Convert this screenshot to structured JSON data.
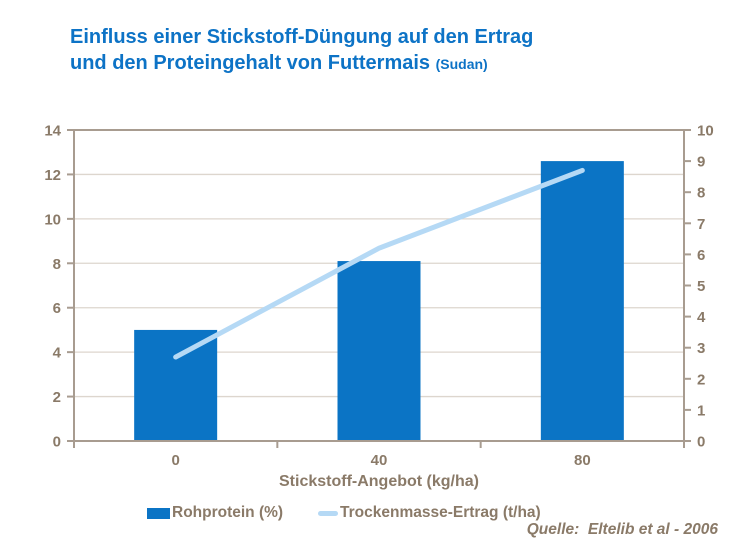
{
  "title": {
    "line1": "Einfluss einer Stickstoff-Düngung auf den Ertrag",
    "line2": "und den Proteingehalt von Futtermais",
    "suffix": "(Sudan)"
  },
  "source": "Quelle:  Eltelib et al - 2006",
  "colors": {
    "title_blue": "#0d73c6",
    "bar_blue": "#0b74c5",
    "line_lightblue": "#b5d9f5",
    "axis_text_brown": "#8a7a68",
    "axis_line": "#a89c90",
    "gridline": "#ddd6ce",
    "background": "#ffffff"
  },
  "legend": [
    {
      "label": "Rohprotein (%)",
      "marker": "bar-swatch"
    },
    {
      "label": "Trockenmasse-Ertrag (t/ha)",
      "marker": "line-swatch"
    }
  ],
  "chart_data": {
    "type": "bar",
    "subtype": "bar-and-line-dual-axis",
    "title": "Einfluss einer Stickstoff-Düngung auf den Ertrag und den Proteingehalt von Futtermais (Sudan)",
    "categories": [
      "0",
      "40",
      "80"
    ],
    "series": [
      {
        "name": "Rohprotein (%)",
        "type": "bar",
        "axis": "left",
        "values": [
          5.0,
          8.1,
          12.6
        ]
      },
      {
        "name": "Trockenmasse-Ertrag (t/ha)",
        "type": "line",
        "axis": "right",
        "values": [
          2.7,
          6.2,
          8.7
        ]
      }
    ],
    "xlabel": "Stickstoff-Angebot (kg/ha)",
    "ylabel_left": "",
    "ylabel_right": "",
    "left_axis": {
      "min": 0,
      "max": 14,
      "ticks": [
        0,
        2,
        4,
        6,
        8,
        10,
        12,
        14
      ]
    },
    "right_axis": {
      "min": 0,
      "max": 10,
      "ticks": [
        0,
        1,
        2,
        3,
        4,
        5,
        6,
        7,
        8,
        9,
        10
      ]
    },
    "grid": true,
    "legend_position": "bottom"
  }
}
